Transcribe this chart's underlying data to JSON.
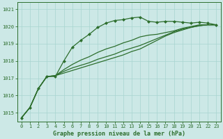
{
  "title": "Graphe pression niveau de la mer (hPa)",
  "bg_color": "#cce8e6",
  "grid_color": "#a8d4d0",
  "line_color": "#2d6e2d",
  "marker_color": "#2d6e2d",
  "xlim_min": -0.5,
  "xlim_max": 23.5,
  "ylim_min": 1014.5,
  "ylim_max": 1021.4,
  "yticks": [
    1015,
    1016,
    1017,
    1018,
    1019,
    1020,
    1021
  ],
  "xticks": [
    0,
    1,
    2,
    3,
    4,
    5,
    6,
    7,
    8,
    9,
    10,
    11,
    12,
    13,
    14,
    15,
    16,
    17,
    18,
    19,
    20,
    21,
    22,
    23
  ],
  "series": [
    [
      1014.7,
      1015.3,
      1016.4,
      1017.1,
      1017.1,
      1018.0,
      1018.8,
      1019.2,
      1019.55,
      1019.95,
      1020.2,
      1020.35,
      1020.4,
      1020.5,
      1020.55,
      1020.3,
      1020.25,
      1020.3,
      1020.3,
      1020.25,
      1020.2,
      1020.25,
      1020.2,
      1020.1
    ],
    [
      1014.7,
      1015.3,
      1016.4,
      1017.1,
      1017.15,
      1017.5,
      1017.8,
      1018.05,
      1018.25,
      1018.5,
      1018.7,
      1018.85,
      1019.05,
      1019.2,
      1019.4,
      1019.5,
      1019.55,
      1019.65,
      1019.75,
      1019.9,
      1020.0,
      1020.1,
      1020.1,
      1020.1
    ],
    [
      1014.7,
      1015.3,
      1016.4,
      1017.1,
      1017.15,
      1017.4,
      1017.6,
      1017.75,
      1017.9,
      1018.1,
      1018.25,
      1018.4,
      1018.6,
      1018.75,
      1018.9,
      1019.1,
      1019.3,
      1019.5,
      1019.7,
      1019.85,
      1019.95,
      1020.05,
      1020.1,
      1020.1
    ],
    [
      1014.7,
      1015.3,
      1016.4,
      1017.1,
      1017.15,
      1017.3,
      1017.45,
      1017.6,
      1017.75,
      1017.9,
      1018.05,
      1018.2,
      1018.35,
      1018.55,
      1018.7,
      1018.95,
      1019.2,
      1019.45,
      1019.65,
      1019.8,
      1019.95,
      1020.05,
      1020.1,
      1020.1
    ]
  ],
  "text_color": "#2d6e2d",
  "tick_color": "#2d6e2d",
  "title_fontsize": 6.0,
  "tick_fontsize": 5.0
}
